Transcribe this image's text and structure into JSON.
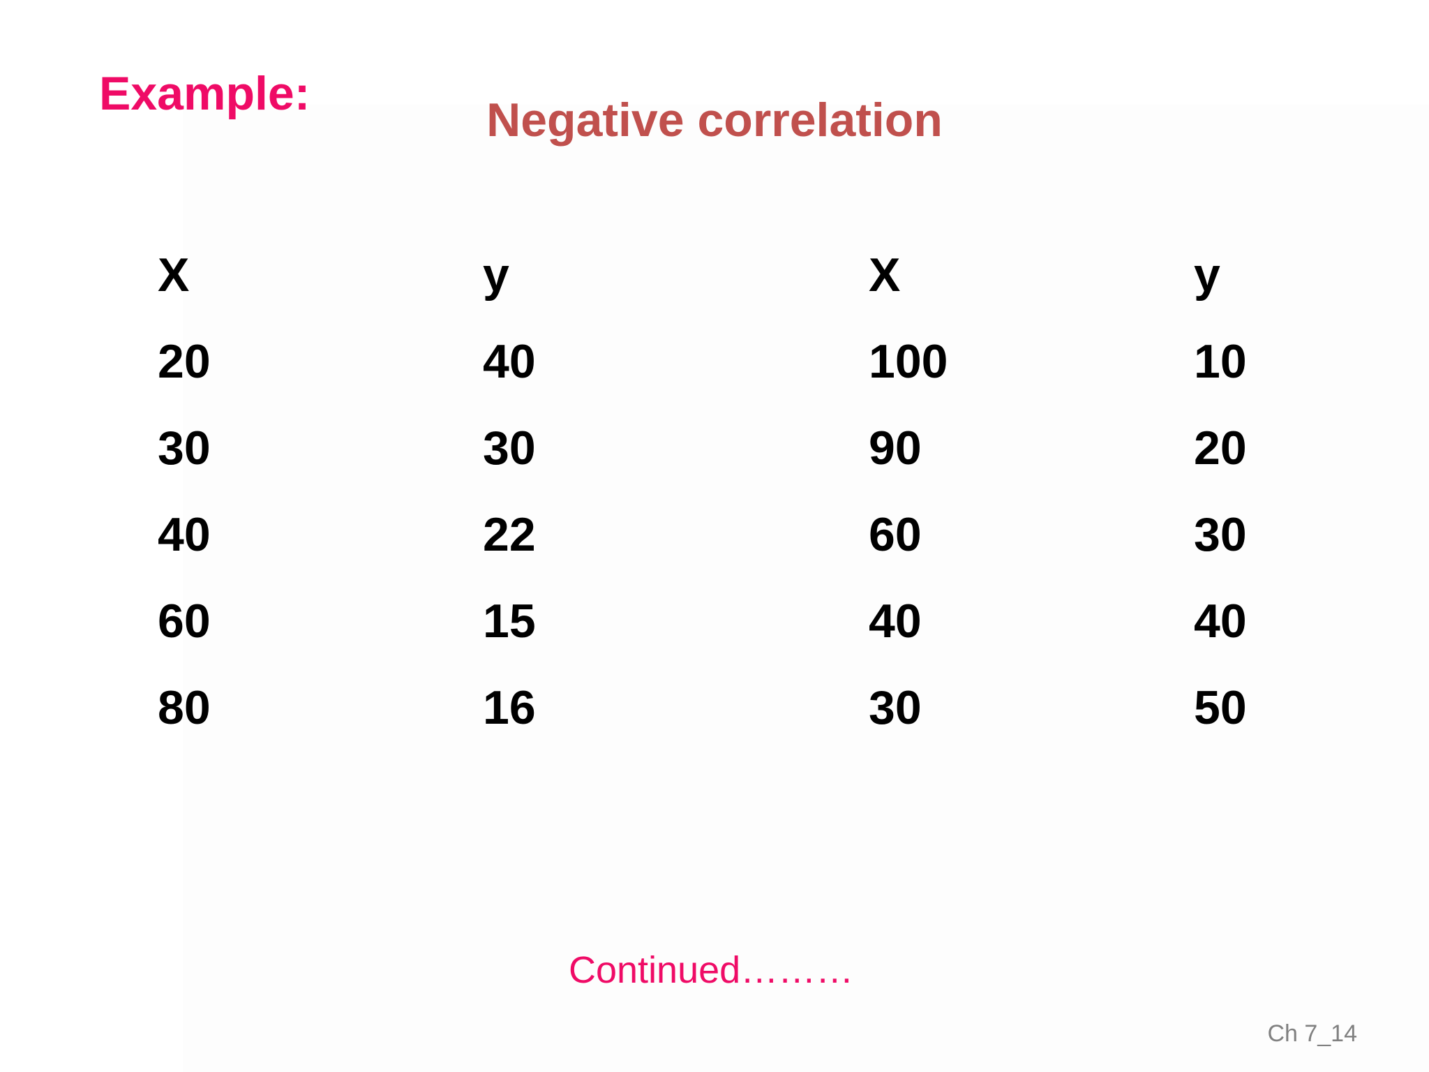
{
  "slide": {
    "label": "Example:",
    "title": "Negative correlation",
    "table": {
      "headers": [
        "X",
        "y",
        "X",
        "y"
      ],
      "rows": [
        [
          "20",
          "40",
          "100",
          "10"
        ],
        [
          "30",
          "30",
          "90",
          "20"
        ],
        [
          "40",
          "22",
          "60",
          "30"
        ],
        [
          "60",
          "15",
          "40",
          "40"
        ],
        [
          "80",
          "16",
          "30",
          "50"
        ]
      ]
    },
    "continued": "Continued………",
    "footer": "Ch 7_14"
  },
  "colors": {
    "label": "#ef0b66",
    "title": "#c0504d",
    "text": "#000000",
    "footer": "#808080"
  }
}
